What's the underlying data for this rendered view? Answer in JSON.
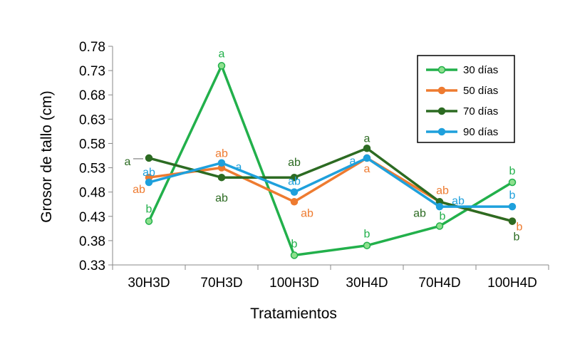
{
  "chart_data": {
    "type": "line",
    "categories": [
      "30H3D",
      "70H3D",
      "100H3D",
      "30H4D",
      "70H4D",
      "100H4D"
    ],
    "ylabel": "Grosor de tallo (cm)",
    "xlabel": "Tratamientos",
    "ylim": [
      0.33,
      0.78
    ],
    "yticks": [
      "0.33",
      "0.38",
      "0.43",
      "0.48",
      "0.53",
      "0.58",
      "0.63",
      "0.68",
      "0.73",
      "0.78"
    ],
    "grid": false,
    "legend_position": "top-right",
    "series": [
      {
        "name": "30 días",
        "color": "#22b04b",
        "marker_fill": "#8ee08e",
        "values": [
          0.42,
          0.74,
          0.35,
          0.37,
          0.41,
          0.5
        ],
        "labels": [
          "b",
          "a",
          "b",
          "b",
          "b",
          "b"
        ]
      },
      {
        "name": "50 días",
        "color": "#ee7b30",
        "marker_fill": "#ee7b30",
        "values": [
          0.51,
          0.53,
          0.46,
          0.55,
          0.46,
          0.42
        ],
        "labels": [
          "ab",
          "ab",
          "ab",
          "a",
          "ab",
          "b"
        ]
      },
      {
        "name": "70 días",
        "color": "#2c6b22",
        "marker_fill": "#2c6b22",
        "values": [
          0.55,
          0.51,
          0.51,
          0.57,
          0.46,
          0.42
        ],
        "labels": [
          "a",
          "ab",
          "ab",
          "a",
          "ab",
          "b"
        ]
      },
      {
        "name": "90 días",
        "color": "#1ea0dc",
        "marker_fill": "#1ea0dc",
        "values": [
          0.5,
          0.54,
          0.48,
          0.55,
          0.45,
          0.45
        ],
        "labels": [
          "ab",
          "a",
          "ab",
          "a",
          "ab",
          "b"
        ]
      }
    ]
  }
}
